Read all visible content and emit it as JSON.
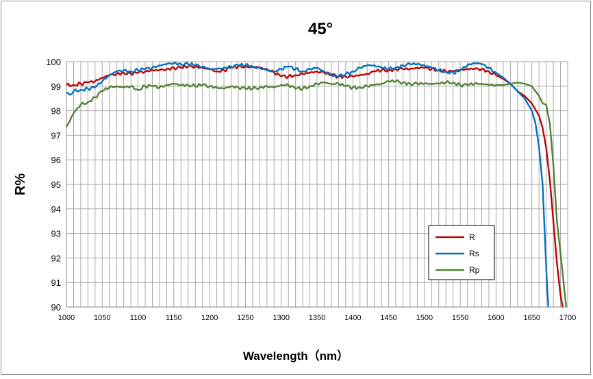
{
  "chart_data": {
    "type": "line",
    "title": "45°",
    "xlabel": "Wavelength（nm）",
    "ylabel": "R%",
    "xlim": [
      1000,
      1700
    ],
    "ylim": [
      90,
      100
    ],
    "x_ticks": [
      "1000",
      "1050",
      "1100",
      "1150",
      "1200",
      "1250",
      "1300",
      "1350",
      "1400",
      "1450",
      "1500",
      "1550",
      "1600",
      "1650",
      "1700"
    ],
    "y_ticks": [
      "90",
      "91",
      "92",
      "93",
      "94",
      "95",
      "96",
      "97",
      "98",
      "99",
      "100"
    ],
    "grid": true,
    "legend_position": "lower-right",
    "series": [
      {
        "name": "R",
        "color": "#c00000",
        "points": [
          [
            1000,
            99.05
          ],
          [
            1010,
            99.05
          ],
          [
            1020,
            99.1
          ],
          [
            1030,
            99.15
          ],
          [
            1040,
            99.2
          ],
          [
            1050,
            99.35
          ],
          [
            1060,
            99.45
          ],
          [
            1070,
            99.5
          ],
          [
            1080,
            99.55
          ],
          [
            1090,
            99.5
          ],
          [
            1100,
            99.55
          ],
          [
            1110,
            99.6
          ],
          [
            1120,
            99.65
          ],
          [
            1130,
            99.65
          ],
          [
            1140,
            99.7
          ],
          [
            1150,
            99.75
          ],
          [
            1160,
            99.75
          ],
          [
            1170,
            99.8
          ],
          [
            1180,
            99.8
          ],
          [
            1190,
            99.75
          ],
          [
            1200,
            99.7
          ],
          [
            1210,
            99.6
          ],
          [
            1220,
            99.65
          ],
          [
            1230,
            99.75
          ],
          [
            1240,
            99.8
          ],
          [
            1250,
            99.8
          ],
          [
            1260,
            99.8
          ],
          [
            1270,
            99.75
          ],
          [
            1280,
            99.7
          ],
          [
            1290,
            99.55
          ],
          [
            1300,
            99.4
          ],
          [
            1310,
            99.4
          ],
          [
            1320,
            99.45
          ],
          [
            1330,
            99.5
          ],
          [
            1340,
            99.55
          ],
          [
            1350,
            99.6
          ],
          [
            1360,
            99.55
          ],
          [
            1370,
            99.45
          ],
          [
            1380,
            99.4
          ],
          [
            1390,
            99.4
          ],
          [
            1400,
            99.4
          ],
          [
            1410,
            99.45
          ],
          [
            1420,
            99.5
          ],
          [
            1430,
            99.6
          ],
          [
            1440,
            99.65
          ],
          [
            1450,
            99.65
          ],
          [
            1460,
            99.7
          ],
          [
            1470,
            99.7
          ],
          [
            1480,
            99.7
          ],
          [
            1490,
            99.75
          ],
          [
            1500,
            99.75
          ],
          [
            1510,
            99.7
          ],
          [
            1520,
            99.65
          ],
          [
            1530,
            99.6
          ],
          [
            1540,
            99.6
          ],
          [
            1550,
            99.65
          ],
          [
            1560,
            99.7
          ],
          [
            1570,
            99.7
          ],
          [
            1580,
            99.7
          ],
          [
            1590,
            99.6
          ],
          [
            1600,
            99.45
          ],
          [
            1610,
            99.3
          ],
          [
            1620,
            99.1
          ],
          [
            1630,
            98.8
          ],
          [
            1640,
            98.6
          ],
          [
            1650,
            98.3
          ],
          [
            1660,
            97.8
          ],
          [
            1665,
            97.3
          ],
          [
            1670,
            96.5
          ],
          [
            1675,
            95.2
          ],
          [
            1680,
            93.5
          ],
          [
            1685,
            91.8
          ],
          [
            1690,
            90.5
          ],
          [
            1693,
            90.0
          ]
        ]
      },
      {
        "name": "Rs",
        "color": "#0070c0",
        "points": [
          [
            1000,
            98.75
          ],
          [
            1005,
            98.65
          ],
          [
            1010,
            98.8
          ],
          [
            1020,
            98.85
          ],
          [
            1030,
            98.9
          ],
          [
            1040,
            98.95
          ],
          [
            1050,
            99.2
          ],
          [
            1060,
            99.45
          ],
          [
            1070,
            99.6
          ],
          [
            1080,
            99.65
          ],
          [
            1090,
            99.6
          ],
          [
            1100,
            99.65
          ],
          [
            1110,
            99.7
          ],
          [
            1120,
            99.75
          ],
          [
            1130,
            99.85
          ],
          [
            1140,
            99.9
          ],
          [
            1150,
            99.95
          ],
          [
            1160,
            99.9
          ],
          [
            1170,
            99.9
          ],
          [
            1180,
            99.85
          ],
          [
            1190,
            99.8
          ],
          [
            1200,
            99.7
          ],
          [
            1210,
            99.7
          ],
          [
            1220,
            99.75
          ],
          [
            1230,
            99.8
          ],
          [
            1240,
            99.85
          ],
          [
            1250,
            99.85
          ],
          [
            1260,
            99.8
          ],
          [
            1270,
            99.75
          ],
          [
            1280,
            99.65
          ],
          [
            1290,
            99.6
          ],
          [
            1300,
            99.7
          ],
          [
            1310,
            99.8
          ],
          [
            1320,
            99.7
          ],
          [
            1330,
            99.6
          ],
          [
            1340,
            99.7
          ],
          [
            1350,
            99.75
          ],
          [
            1360,
            99.6
          ],
          [
            1370,
            99.45
          ],
          [
            1380,
            99.4
          ],
          [
            1390,
            99.5
          ],
          [
            1400,
            99.6
          ],
          [
            1410,
            99.75
          ],
          [
            1420,
            99.85
          ],
          [
            1430,
            99.85
          ],
          [
            1440,
            99.75
          ],
          [
            1450,
            99.7
          ],
          [
            1460,
            99.75
          ],
          [
            1470,
            99.85
          ],
          [
            1480,
            99.9
          ],
          [
            1490,
            99.9
          ],
          [
            1500,
            99.85
          ],
          [
            1510,
            99.75
          ],
          [
            1520,
            99.65
          ],
          [
            1530,
            99.6
          ],
          [
            1540,
            99.55
          ],
          [
            1550,
            99.65
          ],
          [
            1560,
            99.85
          ],
          [
            1570,
            99.95
          ],
          [
            1580,
            99.9
          ],
          [
            1590,
            99.75
          ],
          [
            1600,
            99.55
          ],
          [
            1610,
            99.35
          ],
          [
            1620,
            99.1
          ],
          [
            1630,
            98.8
          ],
          [
            1640,
            98.5
          ],
          [
            1650,
            98.0
          ],
          [
            1655,
            97.5
          ],
          [
            1660,
            96.5
          ],
          [
            1665,
            95.0
          ],
          [
            1668,
            93.0
          ],
          [
            1671,
            91.0
          ],
          [
            1673,
            90.0
          ]
        ]
      },
      {
        "name": "Rp",
        "color": "#538135",
        "points": [
          [
            1000,
            97.35
          ],
          [
            1005,
            97.6
          ],
          [
            1010,
            97.9
          ],
          [
            1015,
            98.1
          ],
          [
            1020,
            98.25
          ],
          [
            1030,
            98.35
          ],
          [
            1040,
            98.55
          ],
          [
            1050,
            98.8
          ],
          [
            1060,
            98.95
          ],
          [
            1070,
            99.0
          ],
          [
            1080,
            98.95
          ],
          [
            1090,
            99.0
          ],
          [
            1100,
            98.85
          ],
          [
            1110,
            99.0
          ],
          [
            1120,
            99.0
          ],
          [
            1130,
            98.95
          ],
          [
            1140,
            99.05
          ],
          [
            1150,
            99.1
          ],
          [
            1160,
            99.05
          ],
          [
            1170,
            99.05
          ],
          [
            1180,
            99.0
          ],
          [
            1190,
            99.05
          ],
          [
            1200,
            99.0
          ],
          [
            1210,
            98.95
          ],
          [
            1220,
            98.9
          ],
          [
            1230,
            99.0
          ],
          [
            1240,
            98.95
          ],
          [
            1250,
            98.9
          ],
          [
            1260,
            98.9
          ],
          [
            1270,
            98.95
          ],
          [
            1280,
            99.0
          ],
          [
            1290,
            98.95
          ],
          [
            1300,
            99.05
          ],
          [
            1310,
            99.05
          ],
          [
            1320,
            98.9
          ],
          [
            1330,
            98.9
          ],
          [
            1340,
            99.0
          ],
          [
            1350,
            99.1
          ],
          [
            1360,
            99.15
          ],
          [
            1370,
            99.1
          ],
          [
            1380,
            99.1
          ],
          [
            1390,
            99.0
          ],
          [
            1400,
            98.95
          ],
          [
            1410,
            98.95
          ],
          [
            1420,
            99.0
          ],
          [
            1430,
            99.05
          ],
          [
            1440,
            99.1
          ],
          [
            1450,
            99.2
          ],
          [
            1460,
            99.2
          ],
          [
            1470,
            99.15
          ],
          [
            1480,
            99.1
          ],
          [
            1490,
            99.1
          ],
          [
            1500,
            99.1
          ],
          [
            1510,
            99.1
          ],
          [
            1520,
            99.1
          ],
          [
            1530,
            99.15
          ],
          [
            1540,
            99.15
          ],
          [
            1550,
            99.05
          ],
          [
            1560,
            99.05
          ],
          [
            1570,
            99.1
          ],
          [
            1580,
            99.1
          ],
          [
            1590,
            99.05
          ],
          [
            1600,
            99.05
          ],
          [
            1610,
            99.05
          ],
          [
            1620,
            99.1
          ],
          [
            1630,
            99.15
          ],
          [
            1640,
            99.1
          ],
          [
            1650,
            99.0
          ],
          [
            1660,
            98.6
          ],
          [
            1665,
            98.3
          ],
          [
            1670,
            98.25
          ],
          [
            1675,
            97.5
          ],
          [
            1680,
            95.8
          ],
          [
            1685,
            93.5
          ],
          [
            1690,
            92.2
          ],
          [
            1695,
            90.8
          ],
          [
            1698,
            90.0
          ]
        ]
      }
    ]
  }
}
